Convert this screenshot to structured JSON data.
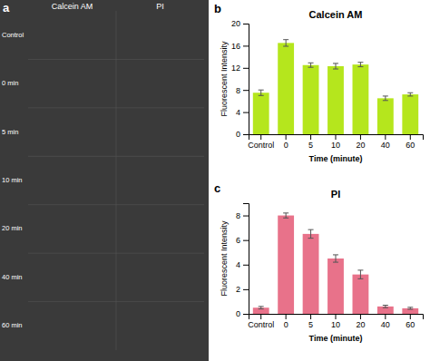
{
  "chart_data": [
    {
      "type": "bar",
      "title": "Calcein AM",
      "xlabel": "Time (minute)",
      "ylabel": "Fluorescent Intensity",
      "categories": [
        "Control",
        "0",
        "5",
        "10",
        "20",
        "40",
        "60"
      ],
      "values": [
        7.5,
        16.5,
        12.5,
        12.3,
        12.6,
        6.5,
        7.2
      ],
      "errors": [
        0.5,
        0.6,
        0.4,
        0.5,
        0.4,
        0.4,
        0.3
      ],
      "color": "#b5e61d",
      "ylim": [
        0,
        20
      ],
      "yticks": [
        0,
        4,
        8,
        12,
        16,
        20
      ],
      "grid": false,
      "annotations": [
        "b",
        "a",
        "Calcein AM",
        "PI",
        "Control",
        "0 min",
        "5 min",
        "10 min",
        "20 min",
        "40 min",
        "60 min"
      ]
    },
    {
      "type": "bar",
      "title": "PI",
      "xlabel": "Time (minute)",
      "ylabel": "Fluorescent Intensity",
      "categories": [
        "Control",
        "0",
        "5",
        "10",
        "20",
        "40",
        "60"
      ],
      "values": [
        0.5,
        8.0,
        6.5,
        4.5,
        3.2,
        0.6,
        0.45
      ],
      "errors": [
        0.1,
        0.2,
        0.35,
        0.3,
        0.35,
        0.1,
        0.08
      ],
      "color": "#e8728a",
      "ylim": [
        0,
        9
      ],
      "yticks": [
        0,
        2,
        4,
        6,
        8
      ],
      "grid": false,
      "annotations": [
        "c"
      ]
    }
  ]
}
